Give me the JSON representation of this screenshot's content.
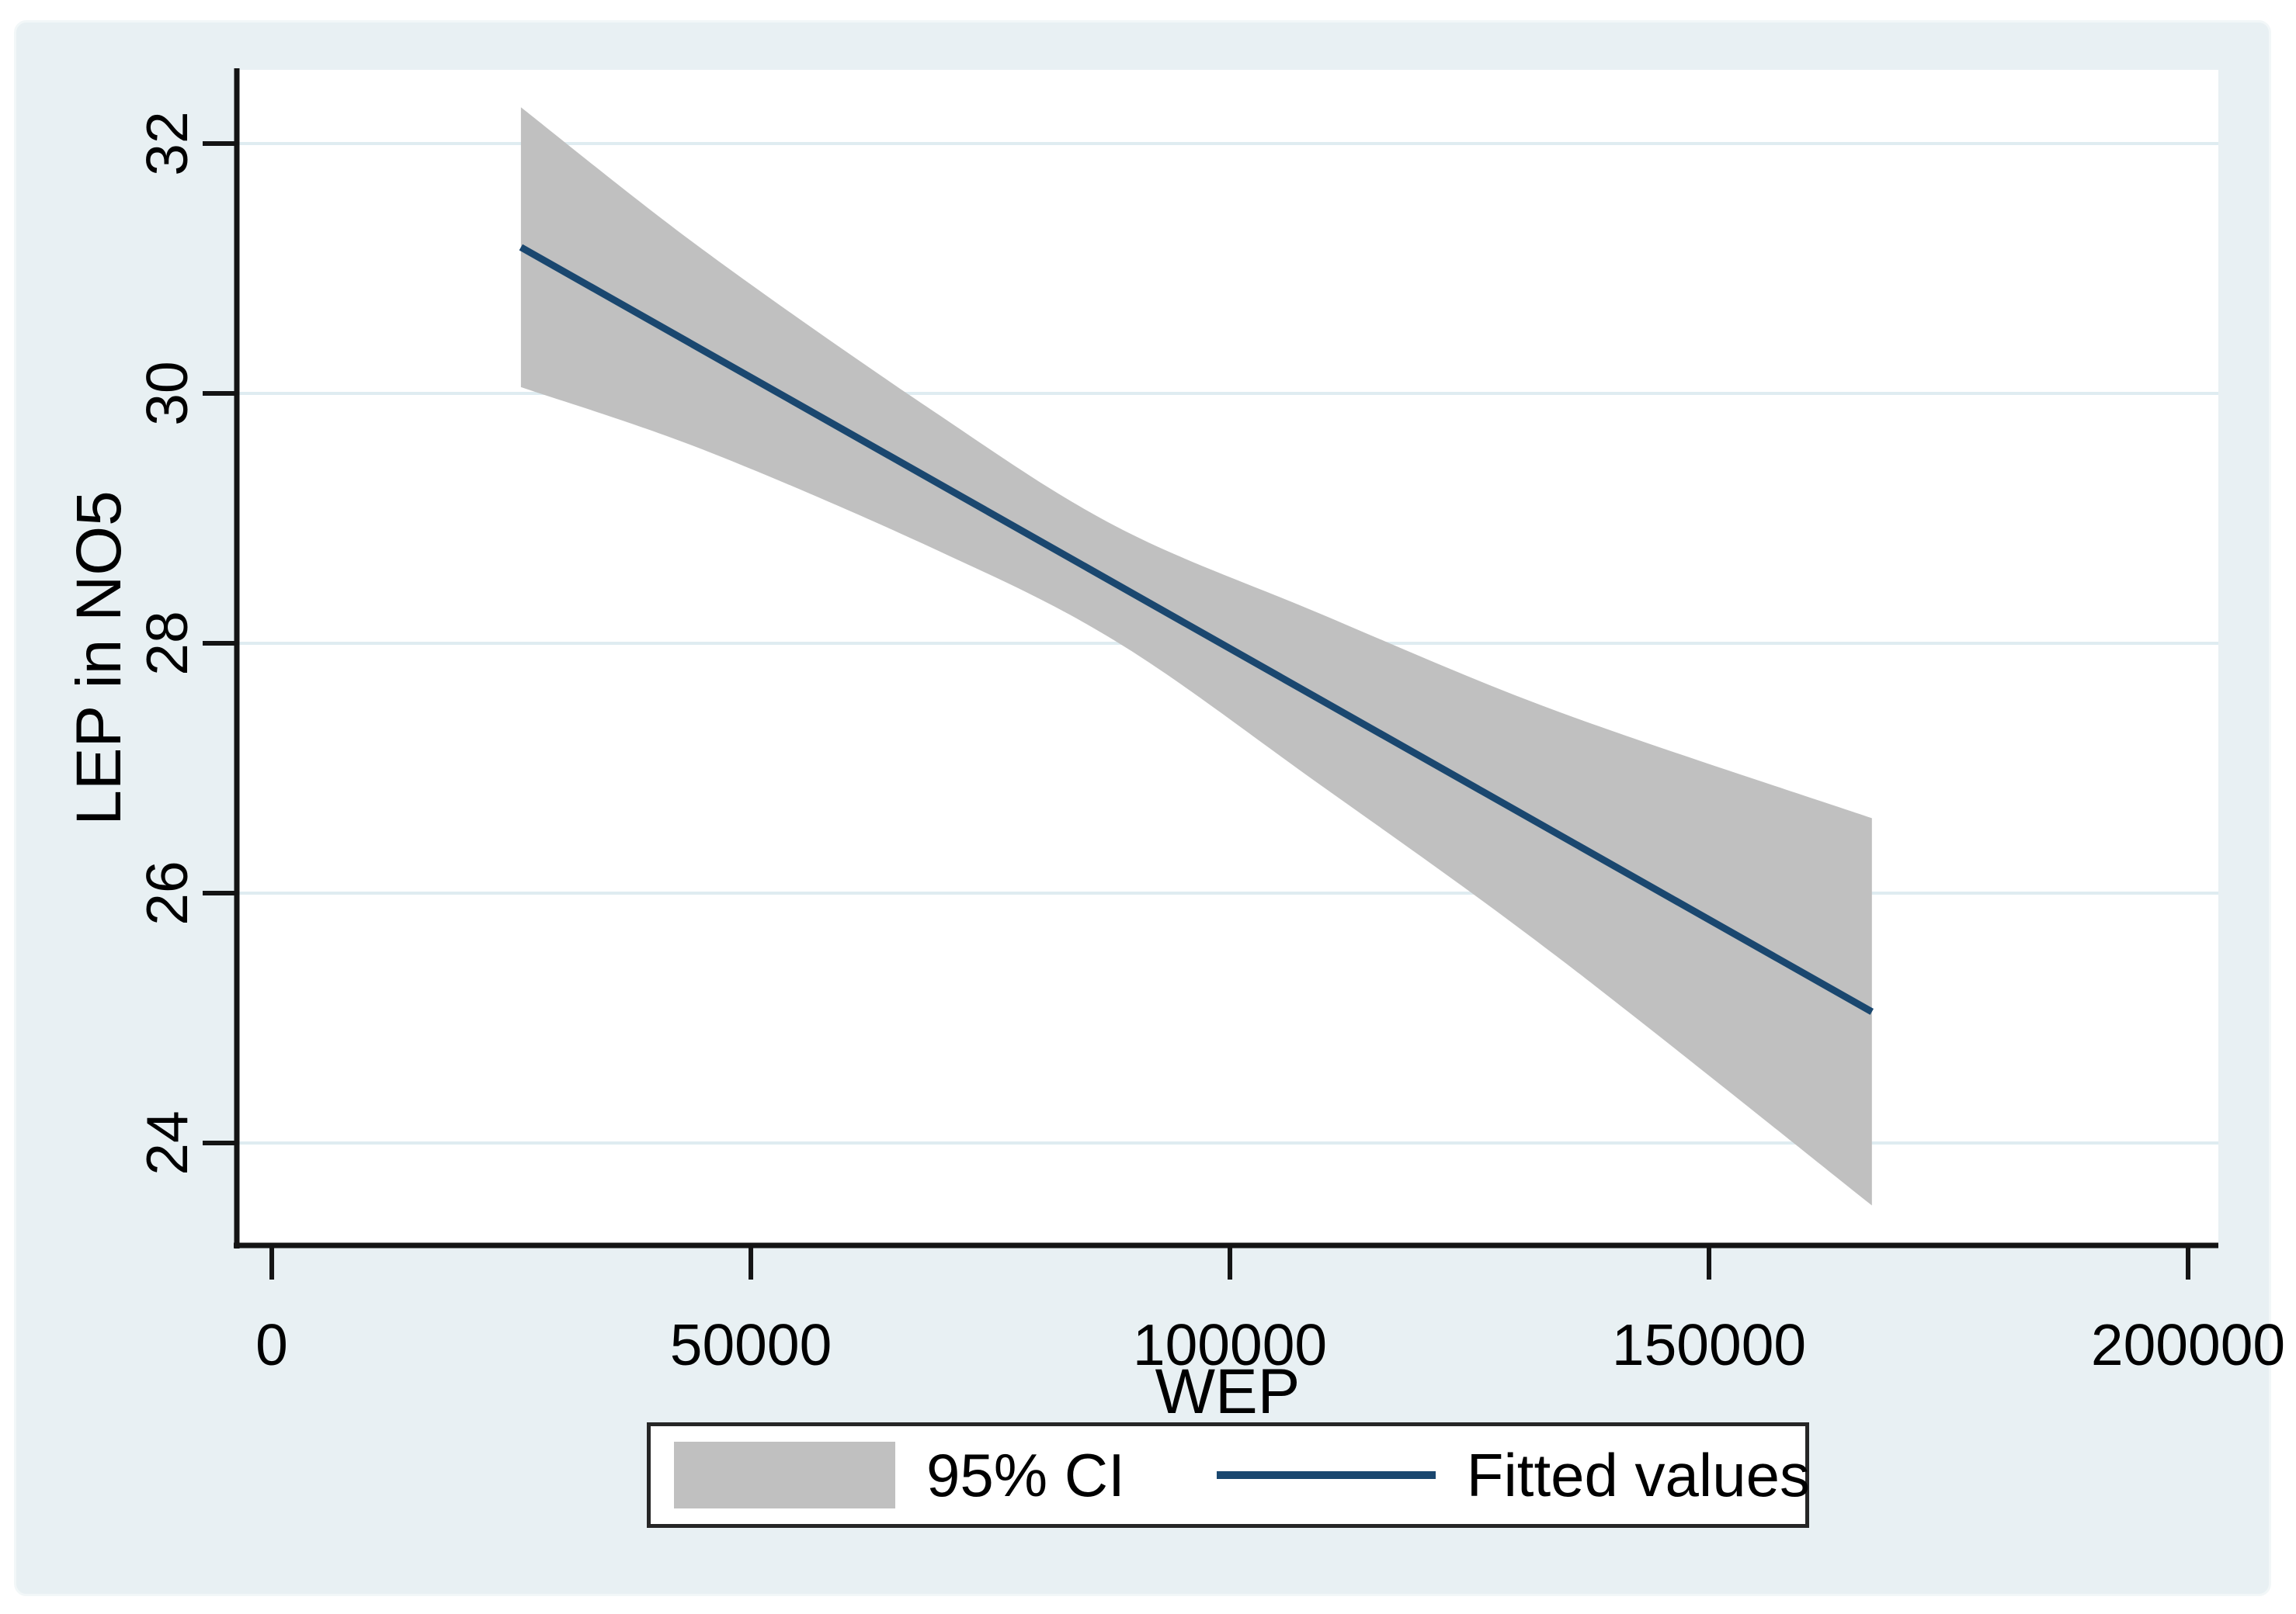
{
  "figure": {
    "background": "#e8f0f3",
    "plot_background": "#ffffff",
    "gridline_color": "#dfecf1",
    "axis_color": "#141414",
    "tick_text_color": "#000000"
  },
  "chart_data": {
    "type": "area",
    "subtype": "linear-fit-with-confidence-band",
    "title": "",
    "xlabel": "WEP",
    "ylabel": "LEP in NO5",
    "x_ticks": [
      0,
      50000,
      100000,
      150000,
      200000
    ],
    "x_tick_labels": [
      "0",
      "50000",
      "100000",
      "150000",
      "200000"
    ],
    "y_ticks": [
      24,
      26,
      28,
      30,
      32
    ],
    "y_tick_labels": [
      "24",
      "26",
      "28",
      "30",
      "32"
    ],
    "xlim": [
      -3650,
      203160
    ],
    "ylim": [
      23.18,
      32.59
    ],
    "grid": "horizontal-only",
    "legend_position": "bottom-center",
    "series": [
      {
        "name": "95% CI",
        "type": "ci-band",
        "color": "#c0c0c0",
        "x": [
          26000,
          45000,
          69000,
          88000,
          109000,
          134000,
          167000
        ],
        "upper": [
          32.29,
          31.15,
          29.86,
          28.94,
          28.25,
          27.46,
          26.6
        ],
        "lower": [
          30.05,
          29.55,
          28.76,
          28.02,
          26.89,
          25.5,
          23.5
        ]
      },
      {
        "name": "Fitted values",
        "type": "line",
        "color": "#1a476f",
        "stroke_width": 9,
        "x": [
          26000,
          167000
        ],
        "y": [
          31.17,
          25.05
        ]
      }
    ]
  },
  "legend": {
    "ci_label": "95% CI",
    "line_label": "Fitted values",
    "border_color": "#262626"
  }
}
